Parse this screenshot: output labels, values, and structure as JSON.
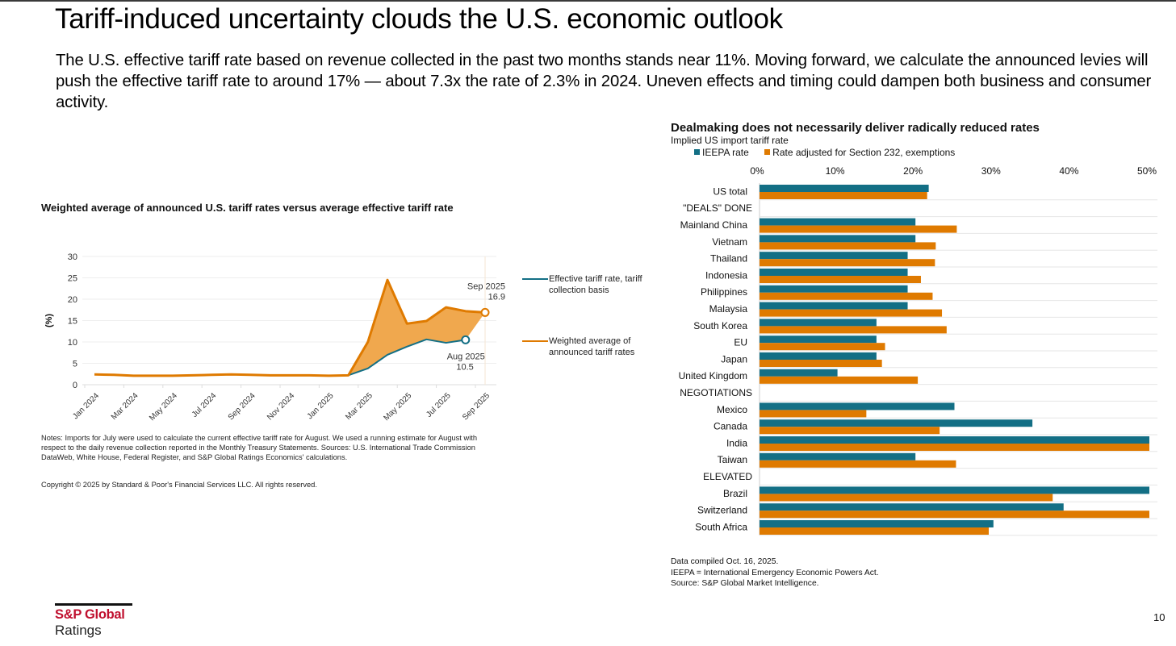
{
  "slide": {
    "title": "Tariff-induced uncertainty clouds the U.S. economic outlook",
    "body": "The U.S. effective tariff rate based on revenue collected in the past two months stands near 11%. Moving forward, we calculate the announced levies will push the effective tariff rate to around 17% — about 7.3x the rate of 2.3% in 2024. Uneven effects and timing could dampen both business and consumer activity.",
    "page_number": "10"
  },
  "logo": {
    "brand": "S&P Global",
    "sub": "Ratings"
  },
  "left_chart_notes": {
    "notes": "Notes: Imports for July were used to calculate the current effective tariff rate for August. We used a running estimate for August with respect to the daily revenue collection reported in the Monthly Treasury Statements. Sources: U.S. International Trade Commission DataWeb, White House, Federal Register, and S&P Global Ratings Economics' calculations.",
    "copyright": "Copyright © 2025 by Standard & Poor's Financial Services LLC. All rights reserved."
  },
  "right_chart_notes": {
    "lines": [
      "Data compiled Oct. 16, 2025.",
      "IEEPA = International Emergency Economic Powers Act.",
      "Source: S&P Global Market Intelligence."
    ]
  },
  "colors": {
    "teal": "#136f85",
    "orange": "#df7a00",
    "fill": "#f0a84e",
    "grid": "#eeeeee",
    "brand_red": "#c0102f"
  },
  "chart_data": [
    {
      "type": "area",
      "title": "Weighted average of announced U.S. tariff rates versus average effective tariff rate",
      "ylabel": "(%)",
      "xlabel": "",
      "ylim": [
        0,
        30
      ],
      "yticks": [
        0,
        5,
        10,
        15,
        20,
        25,
        30
      ],
      "grid": true,
      "legend_position": "right",
      "x": [
        "Jan 2024",
        "Feb 2024",
        "Mar 2024",
        "Apr 2024",
        "May 2024",
        "Jun 2024",
        "Jul 2024",
        "Aug 2024",
        "Sep 2024",
        "Oct 2024",
        "Nov 2024",
        "Dec 2024",
        "Jan 2025",
        "Feb 2025",
        "Mar 2025",
        "Apr 2025",
        "May 2025",
        "Jun 2025",
        "Jul 2025",
        "Aug 2025",
        "Sep 2025"
      ],
      "xtick_labels": [
        "Jan 2024",
        "Mar 2024",
        "May 2024",
        "Jul 2024",
        "Sep 2024",
        "Nov 2024",
        "Jan 2025",
        "Mar 2025",
        "May 2025",
        "Jul 2025",
        "Sep 2025"
      ],
      "series": [
        {
          "name": "Effective tariff rate, tariff collection basis",
          "color": "#136f85",
          "values": [
            2.4,
            2.3,
            2.1,
            2.1,
            2.1,
            2.2,
            2.3,
            2.4,
            2.3,
            2.2,
            2.2,
            2.2,
            2.1,
            2.2,
            3.8,
            7.0,
            8.9,
            10.6,
            9.8,
            10.5,
            null
          ]
        },
        {
          "name": "Weighted average of announced tariff rates",
          "color": "#df7a00",
          "values": [
            2.4,
            2.3,
            2.1,
            2.1,
            2.1,
            2.2,
            2.3,
            2.4,
            2.3,
            2.2,
            2.2,
            2.2,
            2.1,
            2.2,
            10.0,
            24.5,
            14.3,
            14.9,
            18.1,
            17.2,
            16.9
          ]
        }
      ],
      "annotations": [
        {
          "label": "Sep 2025",
          "value": "16.9",
          "series": 1,
          "x": "Sep 2025"
        },
        {
          "label": "Aug 2025",
          "value": "10.5",
          "series": 0,
          "x": "Aug 2025"
        }
      ]
    },
    {
      "type": "bar",
      "orientation": "horizontal",
      "title": "Dealmaking does not necessarily deliver radically reduced rates",
      "subtitle": "Implied US import tariff rate",
      "xlim": [
        0,
        50
      ],
      "xticks": [
        "0%",
        "10%",
        "20%",
        "30%",
        "40%",
        "50%"
      ],
      "legend_position": "top-left",
      "categories": [
        "US total",
        "\"DEALS\" DONE",
        "Mainland China",
        "Vietnam",
        "Thailand",
        "Indonesia",
        "Philippines",
        "Malaysia",
        "South Korea",
        "EU",
        "Japan",
        "United Kingdom",
        "NEGOTIATIONS",
        "Mexico",
        "Canada",
        "India",
        "Taiwan",
        "ELEVATED",
        "Brazil",
        "Switzerland",
        "South Africa"
      ],
      "series": [
        {
          "name": "IEEPA rate",
          "color": "#136f85",
          "values": [
            21.7,
            null,
            20,
            20,
            19,
            19,
            19,
            19,
            15,
            15,
            15,
            10,
            null,
            25,
            35,
            50,
            20,
            null,
            50,
            39,
            30
          ]
        },
        {
          "name": "Rate adjusted for Section 232, exemptions",
          "color": "#df7a00",
          "values": [
            21.5,
            null,
            25.3,
            22.6,
            22.5,
            20.7,
            22.2,
            23.4,
            24,
            16.1,
            15.7,
            20.3,
            null,
            13.7,
            23.1,
            50,
            25.2,
            null,
            37.6,
            50,
            29.4
          ]
        }
      ]
    }
  ]
}
